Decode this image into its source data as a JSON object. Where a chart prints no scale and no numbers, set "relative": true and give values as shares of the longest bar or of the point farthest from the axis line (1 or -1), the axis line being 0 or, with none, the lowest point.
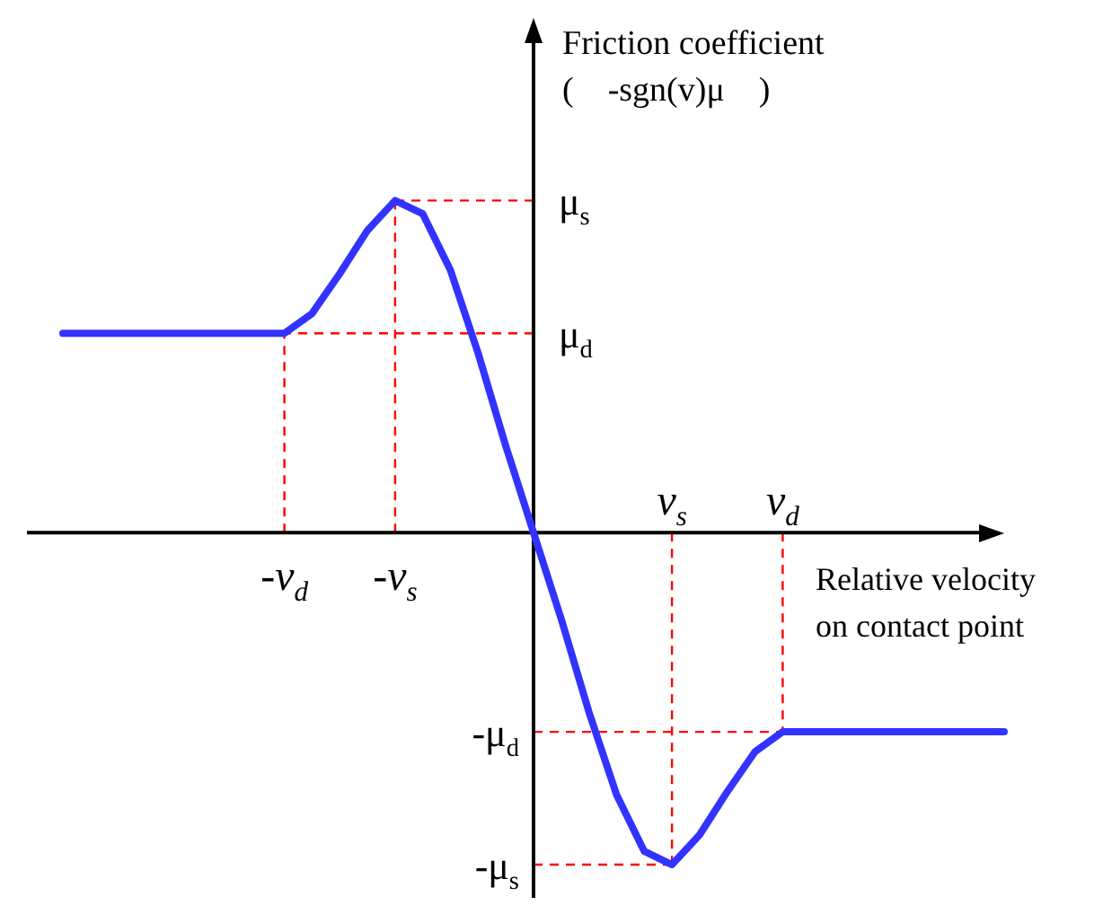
{
  "chart_data": {
    "type": "line",
    "relative": true,
    "xlabel": "Relative velocity\non contact point",
    "ylabel": "Friction coefficient\n(    -sgn(v)μ    )",
    "categories": [
      null,
      null,
      null,
      null,
      null,
      null,
      null,
      null,
      "-v$_{d}$",
      null,
      null,
      null,
      "-v$_{s}$",
      null,
      null,
      null,
      null,
      null,
      null,
      null,
      null,
      null,
      "v$_{s}$",
      null,
      null,
      null,
      "v$_{d}$",
      null,
      null,
      null,
      null,
      null,
      null,
      null,
      null
    ],
    "series": [
      {
        "color": "#3333ff",
        "values": [
          0.6,
          0.6,
          0.6,
          0.6,
          0.6,
          0.6,
          0.6,
          0.6,
          0.6,
          0.66,
          0.78,
          0.91,
          1,
          0.96,
          0.79,
          0.54,
          0.26,
          0,
          -0.26,
          -0.54,
          -0.79,
          -0.96,
          -1,
          -0.91,
          -0.78,
          -0.66,
          -0.6,
          -0.6,
          -0.6,
          -0.6,
          -0.6,
          -0.6,
          -0.6,
          -0.6,
          -0.6
        ]
      }
    ],
    "ref_lines": [
      {
        "axis": "y",
        "value": 1,
        "label": "μ$_{s}$",
        "color": "#ff0000",
        "line_style": "dashed"
      },
      {
        "axis": "y",
        "value": 0.6,
        "label": "μ$_{d}$",
        "color": "#ff0000",
        "line_style": "dashed"
      },
      {
        "axis": "y",
        "value": -0.6,
        "label": "-μ$_{d}$",
        "color": "#ff0000",
        "line_style": "dashed"
      },
      {
        "axis": "y",
        "value": -1,
        "label": "-μ$_{s}$",
        "color": "#ff0000",
        "line_style": "dashed"
      },
      {
        "axis": "x",
        "value": "-v$_{d}$",
        "color": "#ff0000",
        "line_style": "dashed"
      },
      {
        "axis": "x",
        "value": "-v$_{s}$",
        "color": "#ff0000",
        "line_style": "dashed"
      },
      {
        "axis": "x",
        "value": "v$_{s}$",
        "color": "#ff0000",
        "line_style": "dashed"
      },
      {
        "axis": "x",
        "value": "v$_{d}$",
        "color": "#ff0000",
        "line_style": "dashed"
      }
    ],
    "marker": "none",
    "line_style": "solid"
  }
}
